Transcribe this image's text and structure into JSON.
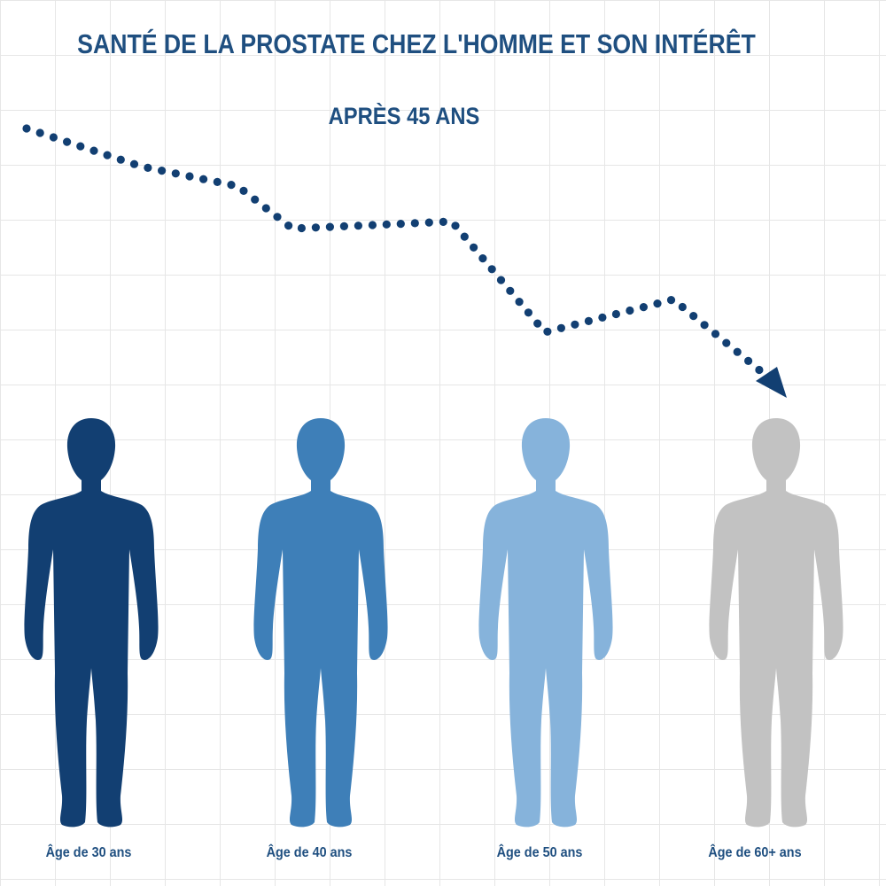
{
  "header": {
    "title": "SANTÉ DE LA PROSTATE CHEZ L'HOMME ET SON INTÉRÊT",
    "subtitle": "APRÈS 45 ANS"
  },
  "figures": [
    {
      "label": "Âge de 30 ans",
      "color": "#123f72"
    },
    {
      "label": "Âge de 40 ans",
      "color": "#3e7fb8"
    },
    {
      "label": "Âge de 50 ans",
      "color": "#86b3db"
    },
    {
      "label": "Âge de 60+ ans",
      "color": "#c2c2c2"
    }
  ],
  "trend": {
    "dot_color": "#123f72",
    "arrow_color": "#123f72"
  }
}
